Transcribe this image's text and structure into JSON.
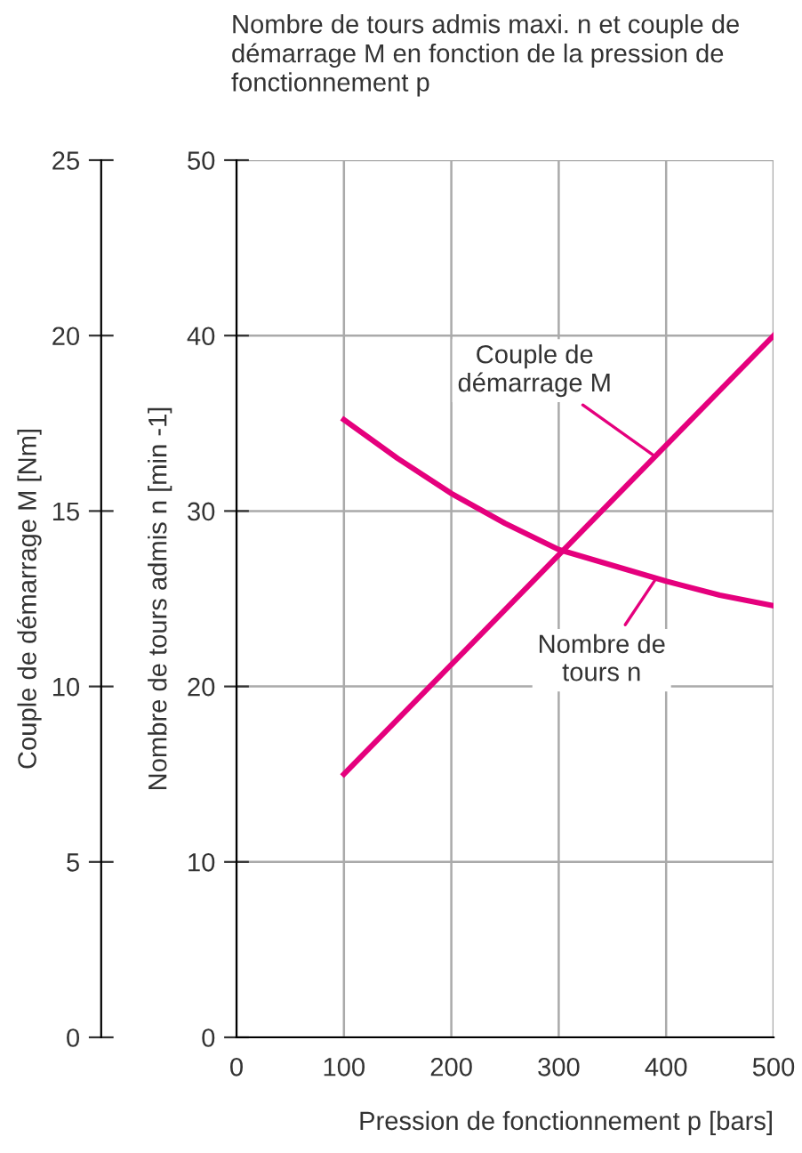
{
  "chart_data": {
    "type": "line",
    "title": "Nombre de tours admis maxi. n et couple de\ndémarrage M en fonction de la pression de\nfonctionnement p",
    "xlabel": "Pression de fonctionnement p [bars]",
    "ylabel": "Nombre de tours admis n [min -1]",
    "y2label": "Couple de démarrage M [Nm]",
    "xlim": [
      0,
      500
    ],
    "xticks": [
      0,
      100,
      200,
      300,
      400,
      500
    ],
    "ylim": [
      0,
      50
    ],
    "yticks": [
      0,
      10,
      20,
      30,
      40,
      50
    ],
    "y2lim": [
      0,
      25
    ],
    "y2ticks": [
      0,
      5,
      10,
      15,
      20,
      25
    ],
    "grid": true,
    "marker": "none",
    "line_style": "solid",
    "series": [
      {
        "color": "#e5007d",
        "axis": "y2",
        "x": [
          100,
          500
        ],
        "values": [
          7.5,
          20
        ]
      },
      {
        "color": "#e5007d",
        "x": [
          100,
          150,
          200,
          250,
          300,
          350,
          400,
          450,
          500
        ],
        "values": [
          35.2,
          33.0,
          31.0,
          29.3,
          27.8,
          26.9,
          26.0,
          25.2,
          24.6
        ]
      }
    ],
    "annotations": [
      {
        "text": "Couple de\ndémarrage M",
        "x": 390,
        "y": 33.1
      },
      {
        "text": "Nombre de\ntours n",
        "x": 390,
        "y": 26.1
      }
    ]
  }
}
